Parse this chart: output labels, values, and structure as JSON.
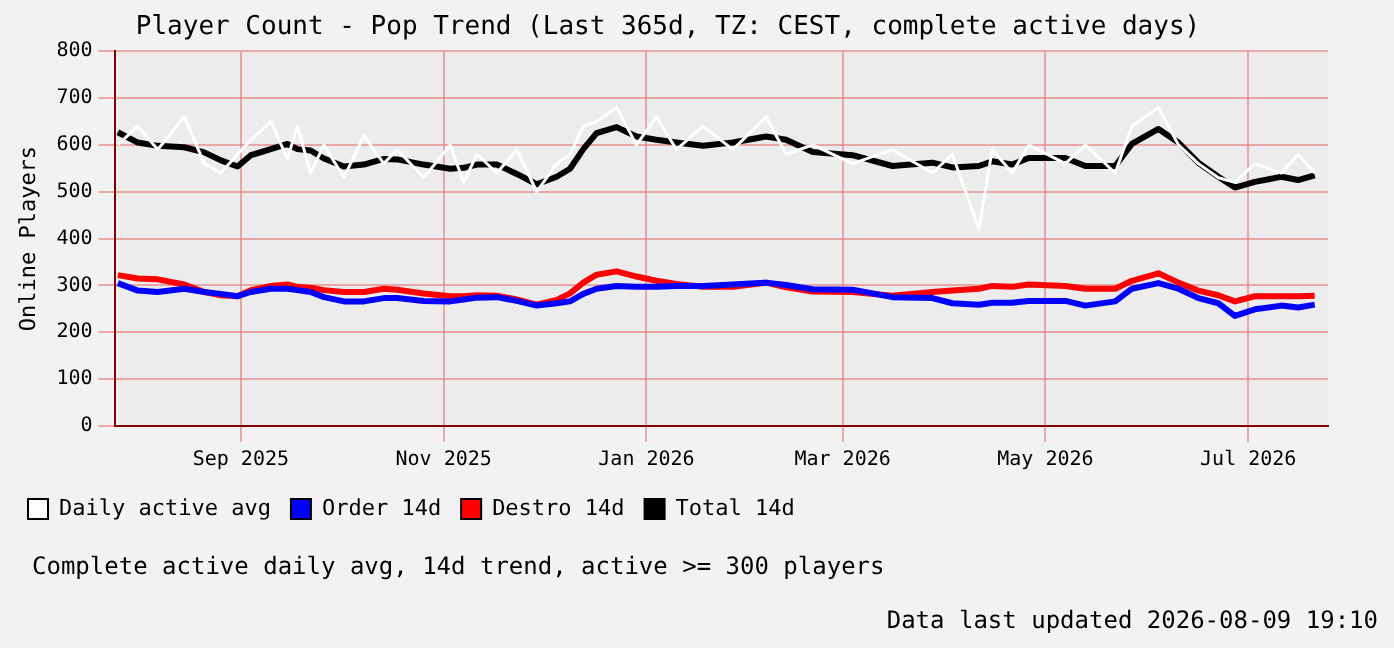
{
  "chart_data": {
    "type": "line",
    "title": "Player Count - Pop Trend (Last 365d, TZ: CEST, complete active days)",
    "ylabel": "Online Players",
    "x": [
      "2025-08-10",
      "2025-08-16",
      "2025-08-22",
      "2025-08-30",
      "2025-09-05",
      "2025-09-10",
      "2025-09-15",
      "2025-09-19",
      "2025-09-25",
      "2025-09-30",
      "2025-10-03",
      "2025-10-07",
      "2025-10-11",
      "2025-10-17",
      "2025-10-23",
      "2025-10-29",
      "2025-11-02",
      "2025-11-10",
      "2025-11-18",
      "2025-11-22",
      "2025-11-26",
      "2025-12-02",
      "2025-12-08",
      "2025-12-14",
      "2025-12-20",
      "2025-12-24",
      "2025-12-28",
      "2026-01-01",
      "2026-01-07",
      "2026-01-13",
      "2026-01-19",
      "2026-01-25",
      "2026-02-02",
      "2026-02-11",
      "2026-02-21",
      "2026-02-27",
      "2026-03-07",
      "2026-03-19",
      "2026-03-31",
      "2026-04-12",
      "2026-04-18",
      "2026-04-26",
      "2026-04-30",
      "2026-05-06",
      "2026-05-11",
      "2026-05-22",
      "2026-05-28",
      "2026-06-06",
      "2026-06-11",
      "2026-06-19",
      "2026-06-25",
      "2026-07-01",
      "2026-07-07",
      "2026-07-12",
      "2026-07-18",
      "2026-07-26",
      "2026-07-31",
      "2026-08-05"
    ],
    "series": [
      {
        "name": "Daily active avg",
        "color": "#ffffff",
        "values": [
          600,
          640,
          590,
          660,
          560,
          540,
          580,
          610,
          650,
          570,
          640,
          540,
          600,
          530,
          620,
          560,
          590,
          530,
          600,
          520,
          580,
          540,
          590,
          500,
          560,
          580,
          640,
          650,
          680,
          600,
          660,
          590,
          640,
          590,
          660,
          580,
          600,
          560,
          590,
          540,
          580,
          420,
          590,
          540,
          600,
          560,
          600,
          540,
          640,
          680,
          600,
          560,
          530,
          520,
          560,
          540,
          580,
          540
        ]
      },
      {
        "name": "Order 14d",
        "color": "#0000ff",
        "values": [
          305,
          289,
          286,
          293,
          286,
          282,
          277,
          286,
          293,
          293,
          290,
          286,
          275,
          266,
          266,
          273,
          273,
          267,
          266,
          270,
          274,
          275,
          267,
          257,
          262,
          266,
          282,
          293,
          299,
          297,
          297,
          299,
          299,
          302,
          306,
          301,
          292,
          291,
          275,
          273,
          262,
          259,
          263,
          263,
          267,
          267,
          257,
          266,
          293,
          305,
          293,
          273,
          262,
          235,
          249,
          257,
          253,
          259
        ]
      },
      {
        "name": "Destro 14d",
        "color": "#ff0000",
        "values": [
          322,
          315,
          313,
          302,
          286,
          279,
          277,
          290,
          299,
          302,
          297,
          295,
          290,
          286,
          286,
          293,
          291,
          283,
          277,
          277,
          279,
          278,
          270,
          259,
          269,
          283,
          306,
          323,
          330,
          319,
          310,
          303,
          297,
          297,
          306,
          296,
          287,
          286,
          278,
          286,
          289,
          293,
          299,
          297,
          302,
          299,
          293,
          293,
          310,
          326,
          306,
          289,
          279,
          266,
          277,
          277,
          277,
          278
        ]
      },
      {
        "name": "Total 14d",
        "color": "#000000",
        "values": [
          627,
          605,
          598,
          595,
          584,
          567,
          554,
          578,
          591,
          602,
          591,
          588,
          571,
          554,
          558,
          570,
          569,
          558,
          549,
          551,
          558,
          558,
          538,
          516,
          532,
          549,
          591,
          625,
          638,
          618,
          611,
          605,
          598,
          605,
          618,
          611,
          585,
          578,
          555,
          562,
          552,
          555,
          565,
          558,
          572,
          572,
          555,
          555,
          602,
          634,
          605,
          562,
          532,
          509,
          521,
          532,
          525,
          535
        ]
      }
    ],
    "xlim": [
      "2025-08-09",
      "2026-08-09"
    ],
    "xticks": [
      {
        "value": "2025-09-16",
        "label": "Sep 2025"
      },
      {
        "value": "2025-11-16",
        "label": "Nov 2025"
      },
      {
        "value": "2026-01-16",
        "label": "Jan 2026"
      },
      {
        "value": "2026-03-16",
        "label": "Mar 2026"
      },
      {
        "value": "2026-05-16",
        "label": "May 2026"
      },
      {
        "value": "2026-07-16",
        "label": "Jul 2026"
      }
    ],
    "ylim": [
      0,
      800
    ],
    "yticks": [
      0,
      100,
      200,
      300,
      400,
      500,
      600,
      700,
      800
    ],
    "grid": true,
    "legend": "bottom left",
    "marker": "none",
    "line_style": "solid",
    "annotations": [
      "Complete active daily avg, 14d trend, active >= 300 players",
      "Data last updated 2026-08-09 19:10"
    ]
  }
}
